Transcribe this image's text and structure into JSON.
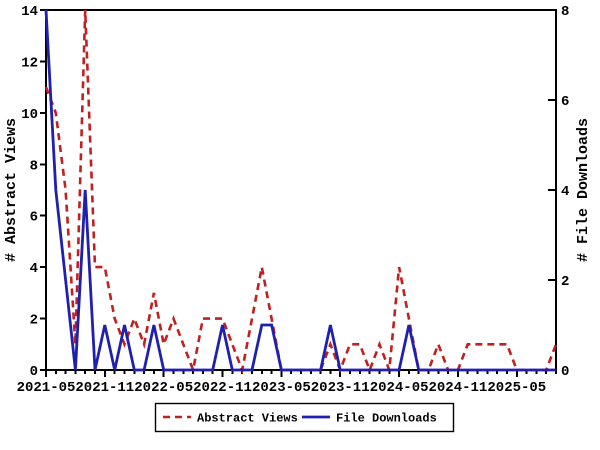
{
  "chart_data": {
    "type": "line",
    "title": "",
    "x": [
      "2021-05",
      "2021-06",
      "2021-07",
      "2021-08",
      "2021-09",
      "2021-10",
      "2021-11",
      "2021-12",
      "2022-01",
      "2022-02",
      "2022-03",
      "2022-04",
      "2022-05",
      "2022-06",
      "2022-07",
      "2022-08",
      "2022-09",
      "2022-10",
      "2022-11",
      "2022-12",
      "2023-01",
      "2023-02",
      "2023-03",
      "2023-04",
      "2023-05",
      "2023-06",
      "2023-07",
      "2023-08",
      "2023-09",
      "2023-10",
      "2023-11",
      "2023-12",
      "2024-01",
      "2024-02",
      "2024-03",
      "2024-04",
      "2024-05",
      "2024-06",
      "2024-07",
      "2024-08",
      "2024-09",
      "2024-10",
      "2024-11",
      "2024-12",
      "2025-01",
      "2025-02",
      "2025-03",
      "2025-04",
      "2025-05",
      "2025-06",
      "2025-07",
      "2025-08",
      "2025-09"
    ],
    "x_major_tick_labels": [
      "2021-05",
      "2021-11",
      "2022-05",
      "2022-11",
      "2023-05",
      "2023-11",
      "2024-05",
      "2024-11",
      "2025-05"
    ],
    "x_major_tick_interval": 6,
    "left_axis": {
      "label": "# Abstract Views",
      "min": 0,
      "max": 14,
      "tick_step": 2
    },
    "right_axis": {
      "label": "# File Downloads",
      "min": 0,
      "max": 8,
      "tick_step": 2
    },
    "series": [
      {
        "name": "Abstract Views",
        "axis": "left",
        "style": "dashed",
        "color": "#c02020",
        "values": [
          11,
          10,
          7,
          1,
          14,
          4,
          4,
          2,
          1,
          2,
          1,
          3,
          1,
          2,
          1,
          0,
          2,
          2,
          2,
          1,
          0,
          2,
          4,
          2,
          0,
          0,
          0,
          0,
          0,
          1,
          0,
          1,
          1,
          0,
          1,
          0,
          4,
          2,
          0,
          0,
          1,
          0,
          0,
          1,
          1,
          1,
          1,
          1,
          0,
          0,
          0,
          0,
          1
        ]
      },
      {
        "name": "File Downloads",
        "axis": "right",
        "style": "solid",
        "color": "#2020b0",
        "values": [
          8,
          4,
          2,
          0,
          4,
          0,
          1,
          0,
          1,
          0,
          0,
          1,
          0,
          0,
          0,
          0,
          0,
          0,
          1,
          0,
          0,
          0,
          1,
          1,
          0,
          0,
          0,
          0,
          0,
          1,
          0,
          0,
          0,
          0,
          0,
          0,
          0,
          1,
          0,
          0,
          0,
          0,
          0,
          0,
          0,
          0,
          0,
          0,
          0,
          0,
          0,
          0,
          0
        ]
      }
    ],
    "legend_position": "bottom-center",
    "grid": false,
    "background": "#ffffff",
    "frame_color": "#000000"
  }
}
